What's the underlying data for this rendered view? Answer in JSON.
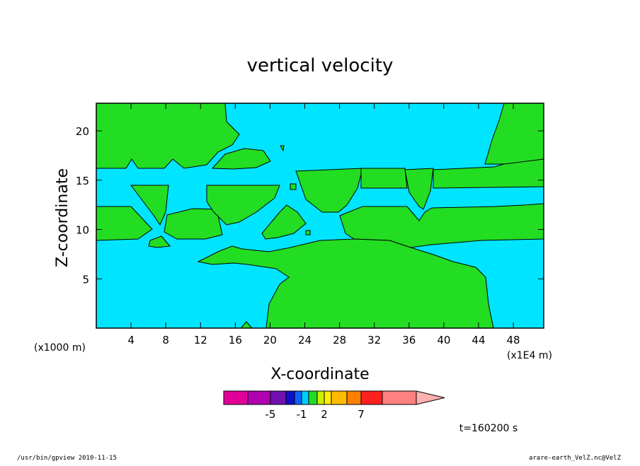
{
  "chart_data": {
    "type": "heatmap",
    "title": "vertical velocity",
    "xlabel": "X-coordinate",
    "ylabel": "Z-coordinate",
    "x_unit_label": "(x1E4 m)",
    "y_unit_label": "(x1000 m)",
    "xlim": [
      0,
      51.5
    ],
    "ylim": [
      0,
      22.8
    ],
    "x_ticks": [
      "4",
      "8",
      "12",
      "16",
      "20",
      "24",
      "28",
      "32",
      "36",
      "40",
      "44",
      "48"
    ],
    "y_ticks": [
      "5",
      "10",
      "15",
      "20"
    ],
    "x_tick_values": [
      4,
      8,
      12,
      16,
      20,
      24,
      28,
      32,
      36,
      40,
      44,
      48
    ],
    "y_tick_values": [
      5,
      10,
      15,
      20
    ],
    "colors": {
      "negative_fill": "#00e5ff",
      "positive_fill": "#22dd22",
      "contour_line": "#000000"
    },
    "colorbar": {
      "colors": [
        "#e00099",
        "#b000b0",
        "#7010b0",
        "#1010cc",
        "#1060ff",
        "#00ccff",
        "#22dd22",
        "#ccee00",
        "#ffee00",
        "#ffbb00",
        "#ff8000",
        "#ff2020",
        "#ff8080",
        "#ffb0b0"
      ],
      "labels": [
        "-5",
        "-1",
        "2",
        "7"
      ]
    },
    "time_label": "t=160200 s"
  },
  "footer": {
    "left": "/usr/bin/gpview  2010-11-15",
    "right": "arare-earth_VelZ.nc@VelZ"
  }
}
